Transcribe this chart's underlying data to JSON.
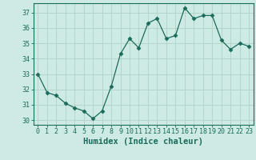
{
  "x": [
    0,
    1,
    2,
    3,
    4,
    5,
    6,
    7,
    8,
    9,
    10,
    11,
    12,
    13,
    14,
    15,
    16,
    17,
    18,
    19,
    20,
    21,
    22,
    23
  ],
  "y": [
    33.0,
    31.8,
    31.6,
    31.1,
    30.8,
    30.6,
    30.1,
    30.6,
    32.2,
    34.3,
    35.3,
    34.7,
    36.3,
    36.6,
    35.3,
    35.5,
    37.3,
    36.6,
    36.8,
    36.8,
    35.2,
    34.6,
    35.0,
    34.8
  ],
  "line_color": "#1a6b5a",
  "marker": "D",
  "marker_size": 2.5,
  "bg_color": "#ceeae4",
  "grid_color": "#b0d0c8",
  "xlabel": "Humidex (Indice chaleur)",
  "ylabel": "",
  "xlim": [
    -0.5,
    23.5
  ],
  "ylim": [
    29.7,
    37.6
  ],
  "yticks": [
    30,
    31,
    32,
    33,
    34,
    35,
    36,
    37
  ],
  "xticks": [
    0,
    1,
    2,
    3,
    4,
    5,
    6,
    7,
    8,
    9,
    10,
    11,
    12,
    13,
    14,
    15,
    16,
    17,
    18,
    19,
    20,
    21,
    22,
    23
  ],
  "xlabel_fontsize": 7.5,
  "tick_fontsize": 6.0,
  "spine_color": "#1a6b5a"
}
